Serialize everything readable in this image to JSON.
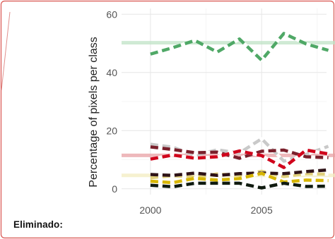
{
  "card": {
    "border_color": "#d9534f",
    "deleted_label": "Eliminado:"
  },
  "chart_data": {
    "type": "line",
    "title": "",
    "xlabel": "",
    "ylabel": "Percentage of pixels per class",
    "x_ticks": [
      2000,
      2005
    ],
    "y_ticks": [
      0,
      20,
      40,
      60
    ],
    "xlim": [
      1998.7,
      2008.3
    ],
    "ylim": [
      -2,
      62
    ],
    "grid": true,
    "legend": "none",
    "x": [
      2000,
      2001,
      2002,
      2003,
      2004,
      2005,
      2006,
      2007,
      2008
    ],
    "series": [
      {
        "color": "#4fa866",
        "highlight": "#bfe3c6",
        "mean": 50.2,
        "values": [
          46.3,
          48.5,
          51.0,
          47.0,
          51.5,
          44.2,
          53.4,
          49.8,
          47.6
        ]
      },
      {
        "color": "#c9c9c9",
        "highlight": null,
        "mean": null,
        "values": [
          15.3,
          14.3,
          11.5,
          13.4,
          12.3,
          17.2,
          9.5,
          11.8,
          14.6
        ]
      },
      {
        "color": "#7a1f2b",
        "highlight": null,
        "mean": null,
        "values": [
          14.4,
          13.5,
          12.4,
          12.6,
          10.5,
          12.9,
          13.3,
          11.0,
          10.7
        ]
      },
      {
        "color": "#d0021b",
        "highlight": "#e8a0a4",
        "mean": 11.5,
        "values": [
          10.2,
          11.6,
          10.5,
          11.0,
          13.0,
          11.4,
          7.3,
          13.3,
          12.0
        ]
      },
      {
        "color": "#e0cf7a",
        "highlight": "#f3ecc0",
        "mean": 4.6,
        "values": [
          3.8,
          4.5,
          4.0,
          5.1,
          4.6,
          6.0,
          4.2,
          5.2,
          5.0
        ]
      },
      {
        "color": "#2e1216",
        "highlight": null,
        "mean": null,
        "values": [
          4.9,
          4.6,
          5.4,
          4.6,
          5.2,
          5.4,
          5.2,
          5.9,
          6.5
        ]
      },
      {
        "color": "#d7b600",
        "highlight": null,
        "mean": null,
        "values": [
          2.6,
          2.1,
          3.6,
          3.0,
          3.5,
          5.3,
          2.3,
          3.0,
          2.8
        ]
      },
      {
        "color": "#0f1a0f",
        "highlight": null,
        "mean": null,
        "values": [
          1.2,
          0.7,
          1.9,
          1.9,
          1.9,
          0.3,
          1.9,
          0.8,
          0.9
        ]
      }
    ]
  }
}
